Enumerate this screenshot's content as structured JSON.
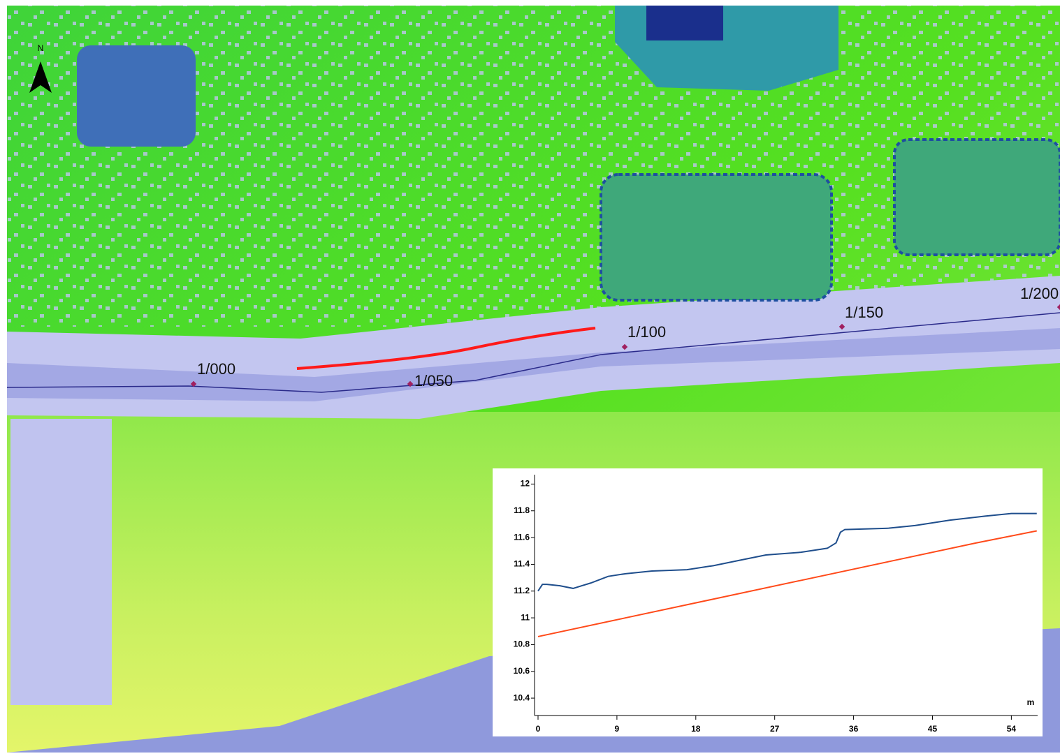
{
  "map": {
    "north": "N",
    "stations": [
      "1/000",
      "1/050",
      "1/100",
      "1/150",
      "1/200"
    ]
  },
  "chart_data": {
    "type": "line",
    "x_unit": "m",
    "xlim": [
      0,
      57
    ],
    "xticks": [
      0,
      9,
      18,
      27,
      36,
      45,
      54
    ],
    "ylim": [
      10.27,
      12.07
    ],
    "yticks": [
      10.4,
      10.6,
      10.8,
      11,
      11.2,
      11.4,
      11.6,
      11.8,
      12
    ],
    "series": [
      {
        "color": "#1f4e8c",
        "x": [
          0,
          0.5,
          1,
          2.5,
          4,
          5,
          6,
          8,
          10,
          13,
          17,
          20,
          23,
          26,
          30,
          33,
          34,
          34.5,
          35,
          40,
          43,
          47,
          51,
          54,
          56.9
        ],
        "values": [
          11.2,
          11.25,
          11.25,
          11.24,
          11.22,
          11.24,
          11.26,
          11.31,
          11.33,
          11.35,
          11.36,
          11.39,
          11.43,
          11.47,
          11.49,
          11.52,
          11.56,
          11.64,
          11.66,
          11.67,
          11.69,
          11.73,
          11.76,
          11.78,
          11.78
        ]
      },
      {
        "color": "#ff4a1a",
        "x": [
          0,
          10,
          20,
          30,
          40,
          50,
          56.9
        ],
        "values": [
          10.86,
          11.0,
          11.14,
          11.28,
          11.42,
          11.56,
          11.65
        ]
      }
    ]
  }
}
